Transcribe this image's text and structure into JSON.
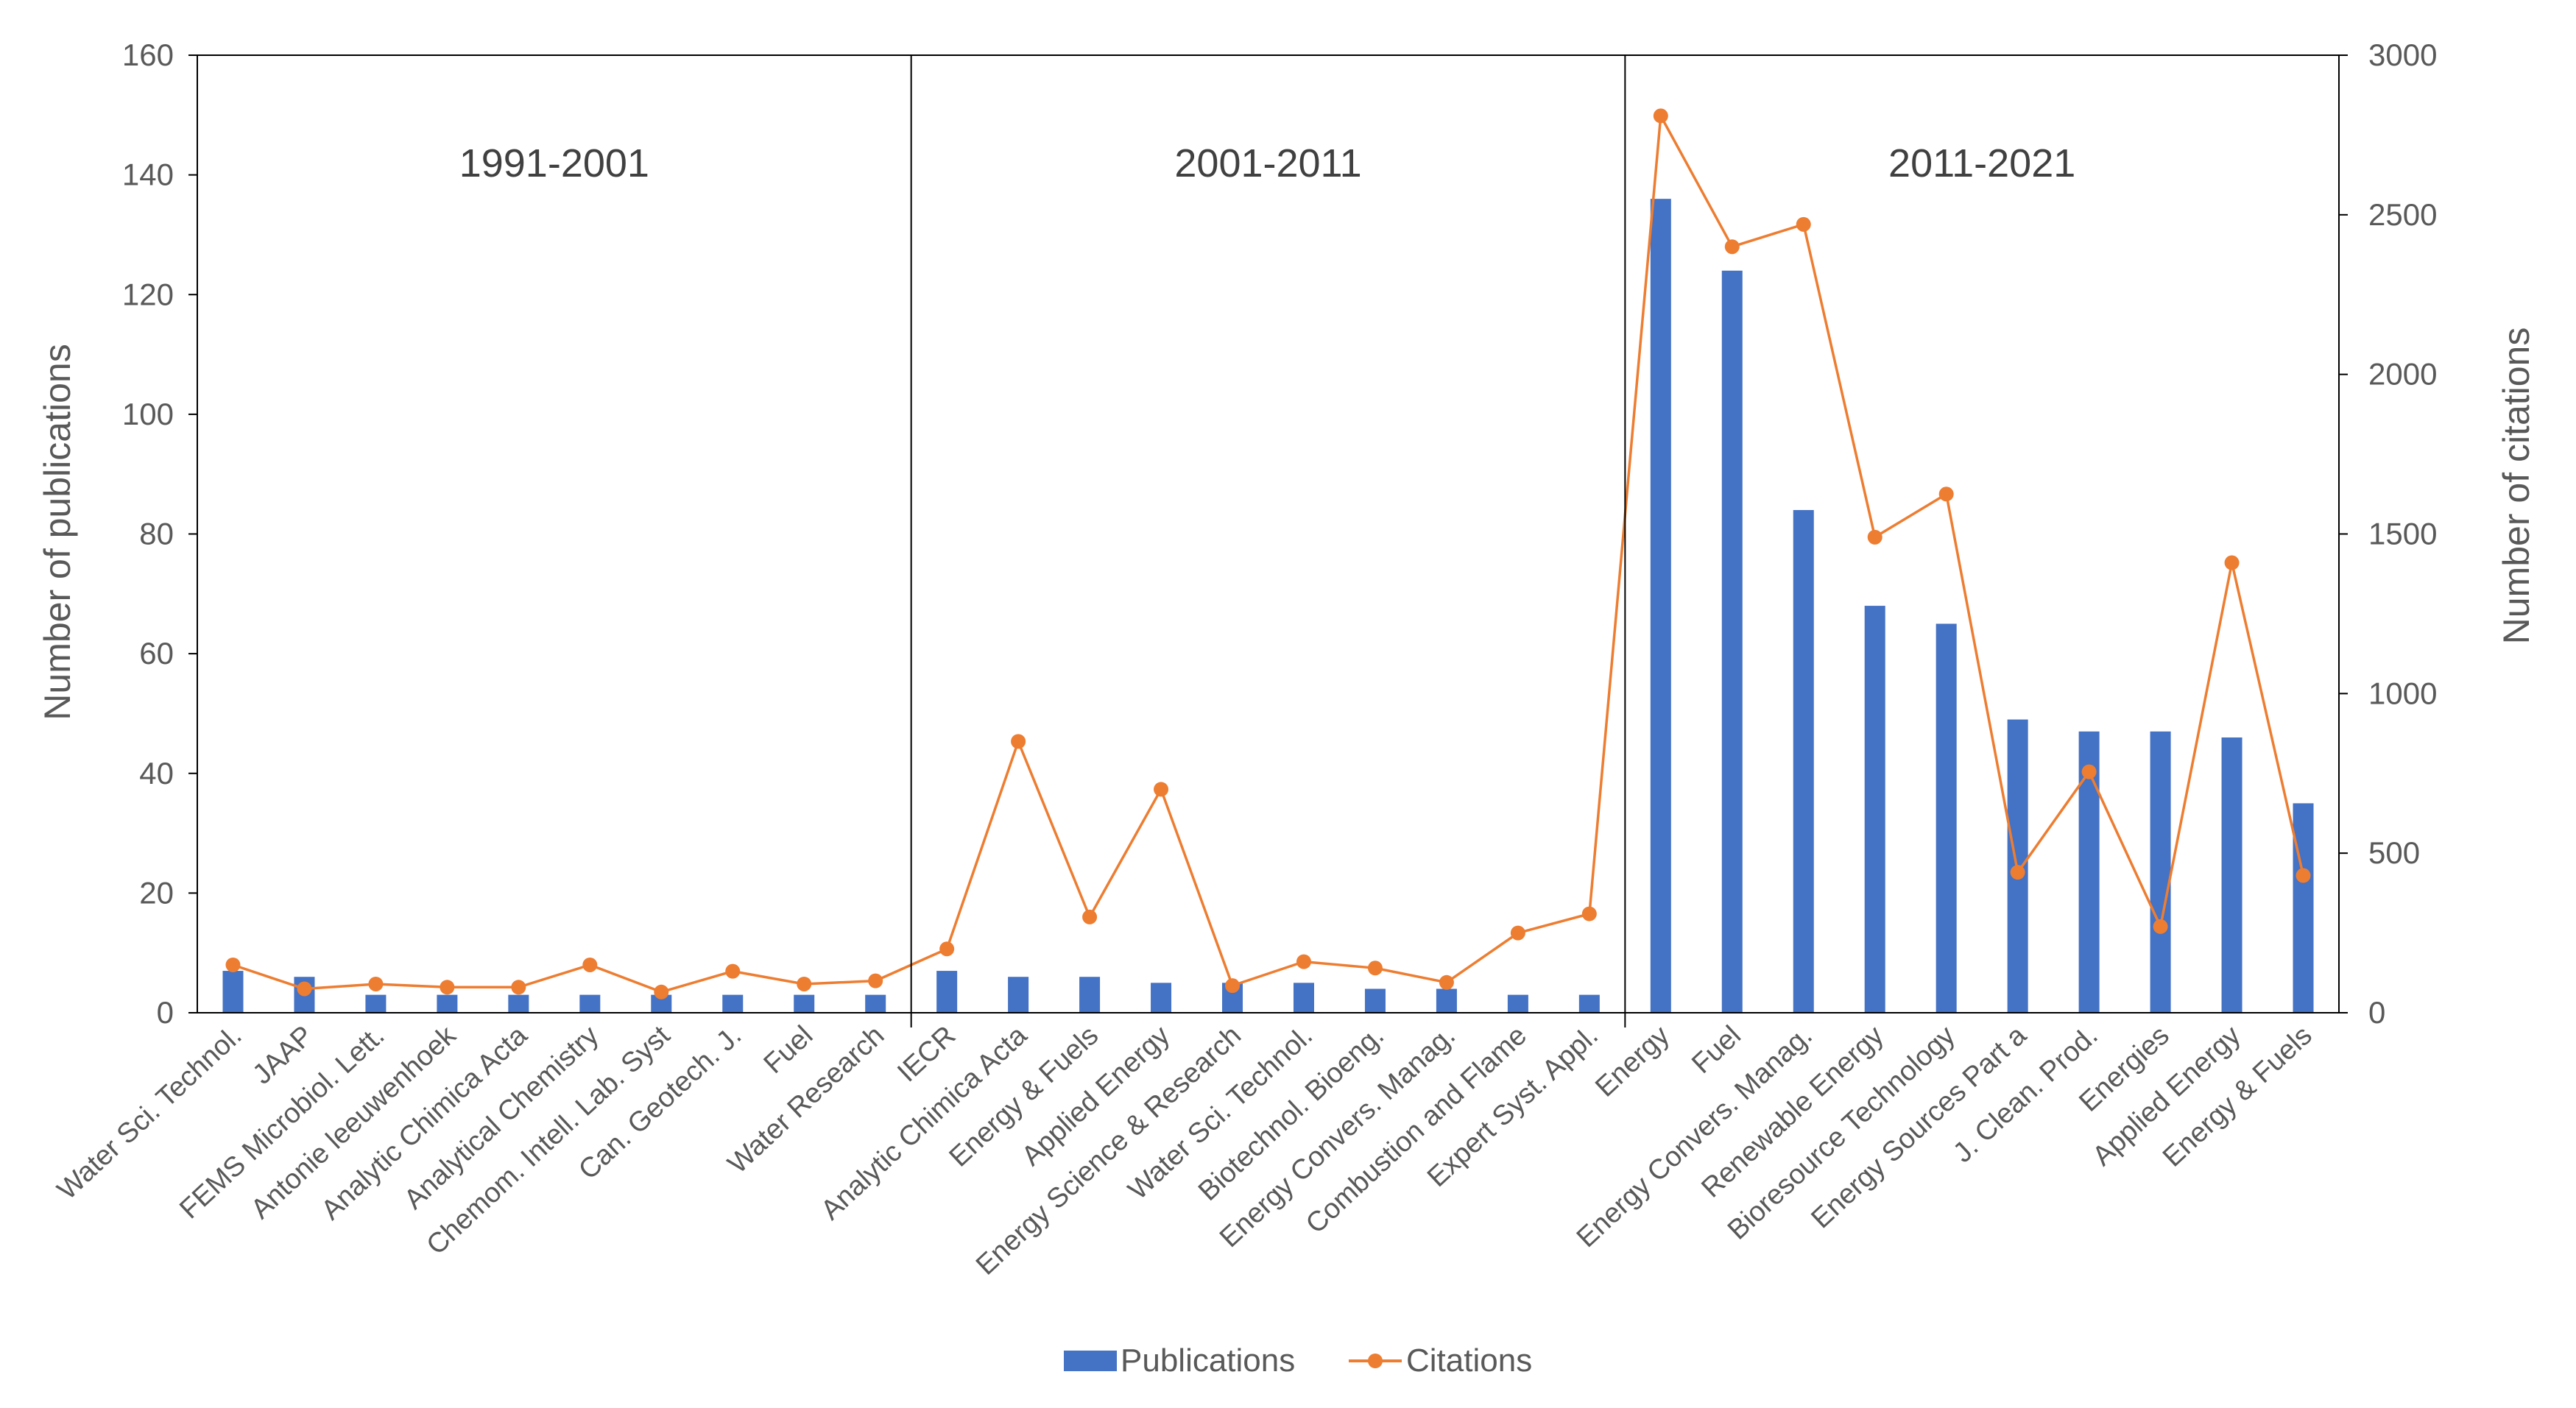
{
  "chart_data": {
    "type": "bar",
    "title": "",
    "ylabel": "Number of publications",
    "y2label": "Number of citations",
    "ylim": [
      0,
      160
    ],
    "y2lim": [
      0,
      3000
    ],
    "yticks": [
      0,
      20,
      40,
      60,
      80,
      100,
      120,
      140,
      160
    ],
    "y2ticks": [
      0,
      500,
      1000,
      1500,
      2000,
      2500,
      3000
    ],
    "periods": [
      "1991-2001",
      "2001-2011",
      "2011-2021"
    ],
    "categories": [
      "Water Sci. Technol.",
      "JAAP",
      "FEMS Microbiol. Lett.",
      "Antonie leeuwenhoek",
      "Analytic Chimica Acta",
      "Analytical Chemistry",
      "Chemom. Intell. Lab. Syst",
      "Can. Geotech. J.",
      "Fuel",
      "Water Research",
      "IECR",
      "Analytic Chimica Acta",
      "Energy & Fuels",
      "Applied Energy",
      "Energy Science & Research",
      "Water Sci. Technol.",
      "Biotechnol. Bioeng.",
      "Energy Convers. Manag.",
      "Combustion and Flame",
      "Expert Syst. Appl.",
      "Energy",
      "Fuel",
      "Energy Convers. Manag.",
      "Renewable Energy",
      "Bioresource Technology",
      "Energy Sources Part a",
      "J. Clean. Prod.",
      "Energies",
      "Applied Energy",
      "Energy & Fuels"
    ],
    "series": [
      {
        "name": "Publications",
        "type": "bar",
        "axis": "left",
        "color": "#4472C4",
        "values": [
          7,
          6,
          3,
          3,
          3,
          3,
          3,
          3,
          3,
          3,
          7,
          6,
          6,
          5,
          5,
          5,
          4,
          4,
          3,
          3,
          136,
          124,
          84,
          68,
          65,
          49,
          47,
          47,
          46,
          35
        ]
      },
      {
        "name": "Citations",
        "type": "line",
        "axis": "right",
        "color": "#ED7D31",
        "values": [
          150,
          75,
          90,
          80,
          80,
          150,
          65,
          130,
          90,
          100,
          200,
          850,
          300,
          700,
          85,
          160,
          140,
          95,
          250,
          310,
          2810,
          2400,
          2470,
          1490,
          1625,
          440,
          755,
          270,
          1410,
          430
        ]
      }
    ],
    "legend": [
      "Publications",
      "Citations"
    ],
    "legend_position": "bottom"
  }
}
